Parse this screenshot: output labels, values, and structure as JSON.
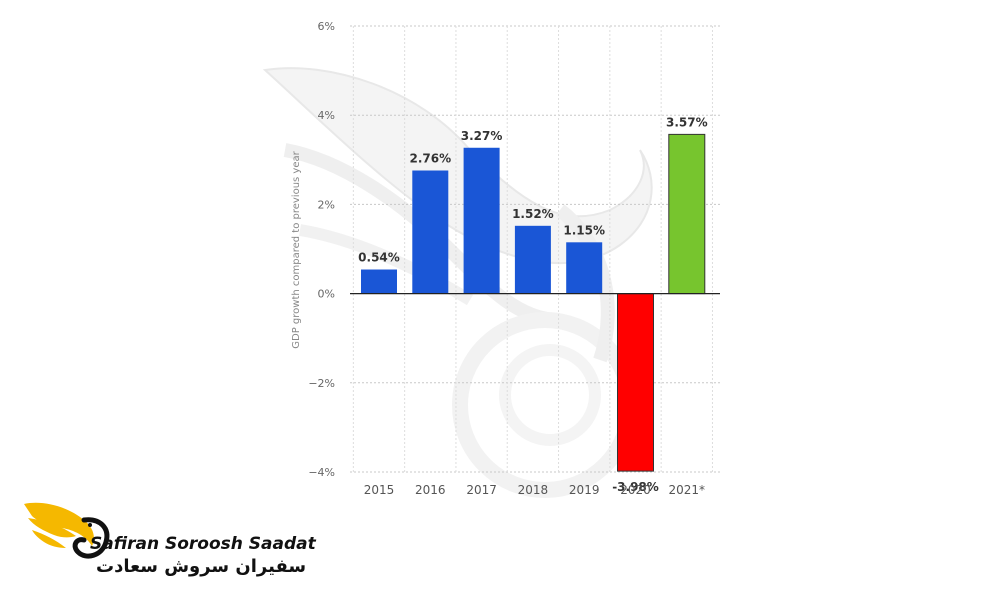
{
  "chart_data": {
    "type": "bar",
    "categories": [
      "2015",
      "2016",
      "2017",
      "2018",
      "2019",
      "2020",
      "2021*"
    ],
    "values": [
      0.54,
      2.76,
      3.27,
      1.52,
      1.15,
      -3.98,
      3.57
    ],
    "value_labels": [
      "0.54%",
      "2.76%",
      "3.27%",
      "1.52%",
      "1.15%",
      "-3.98%",
      "3.57%"
    ],
    "bar_colors": [
      "#1a56d6",
      "#1a56d6",
      "#1a56d6",
      "#1a56d6",
      "#1a56d6",
      "#ff0000",
      "#77c52e"
    ],
    "ylabel": "GDP growth compared to previous year",
    "yticks": [
      6,
      4,
      2,
      0,
      -2,
      -4
    ],
    "ytick_labels": [
      "6%",
      "4%",
      "2%",
      "0%",
      "−2%",
      "−4%"
    ],
    "ylim": [
      -4,
      6
    ],
    "grid": true
  },
  "brand": {
    "name_en": "Safiran Soroosh Saadat",
    "name_fa": "سفیران سروش سعادت",
    "accent_color": "#f5b800"
  }
}
